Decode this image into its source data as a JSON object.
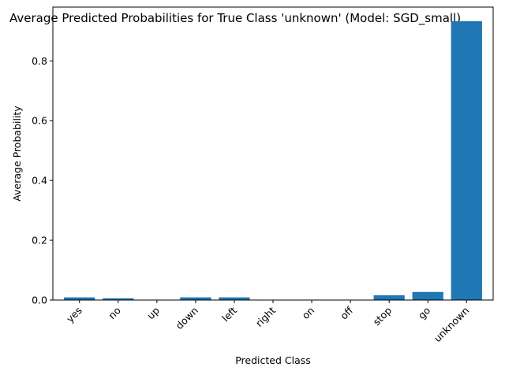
{
  "chart_data": {
    "type": "bar",
    "title": "Average Predicted Probabilities for True Class 'unknown' (Model: SGD_small)",
    "xlabel": "Predicted Class",
    "ylabel": "Average Probability",
    "categories": [
      "yes",
      "no",
      "up",
      "down",
      "left",
      "right",
      "on",
      "off",
      "stop",
      "go",
      "unknown"
    ],
    "values": [
      0.009,
      0.006,
      0.001,
      0.009,
      0.009,
      0.001,
      0.001,
      0.001,
      0.016,
      0.027,
      0.933
    ],
    "ylim": [
      0,
      0.98
    ],
    "yticks": [
      0.0,
      0.2,
      0.4,
      0.6,
      0.8
    ],
    "ytick_labels": [
      "0.0",
      "0.2",
      "0.4",
      "0.6",
      "0.8"
    ],
    "bar_color": "#1f77b4",
    "grid": false,
    "xtick_rotation": 45
  }
}
